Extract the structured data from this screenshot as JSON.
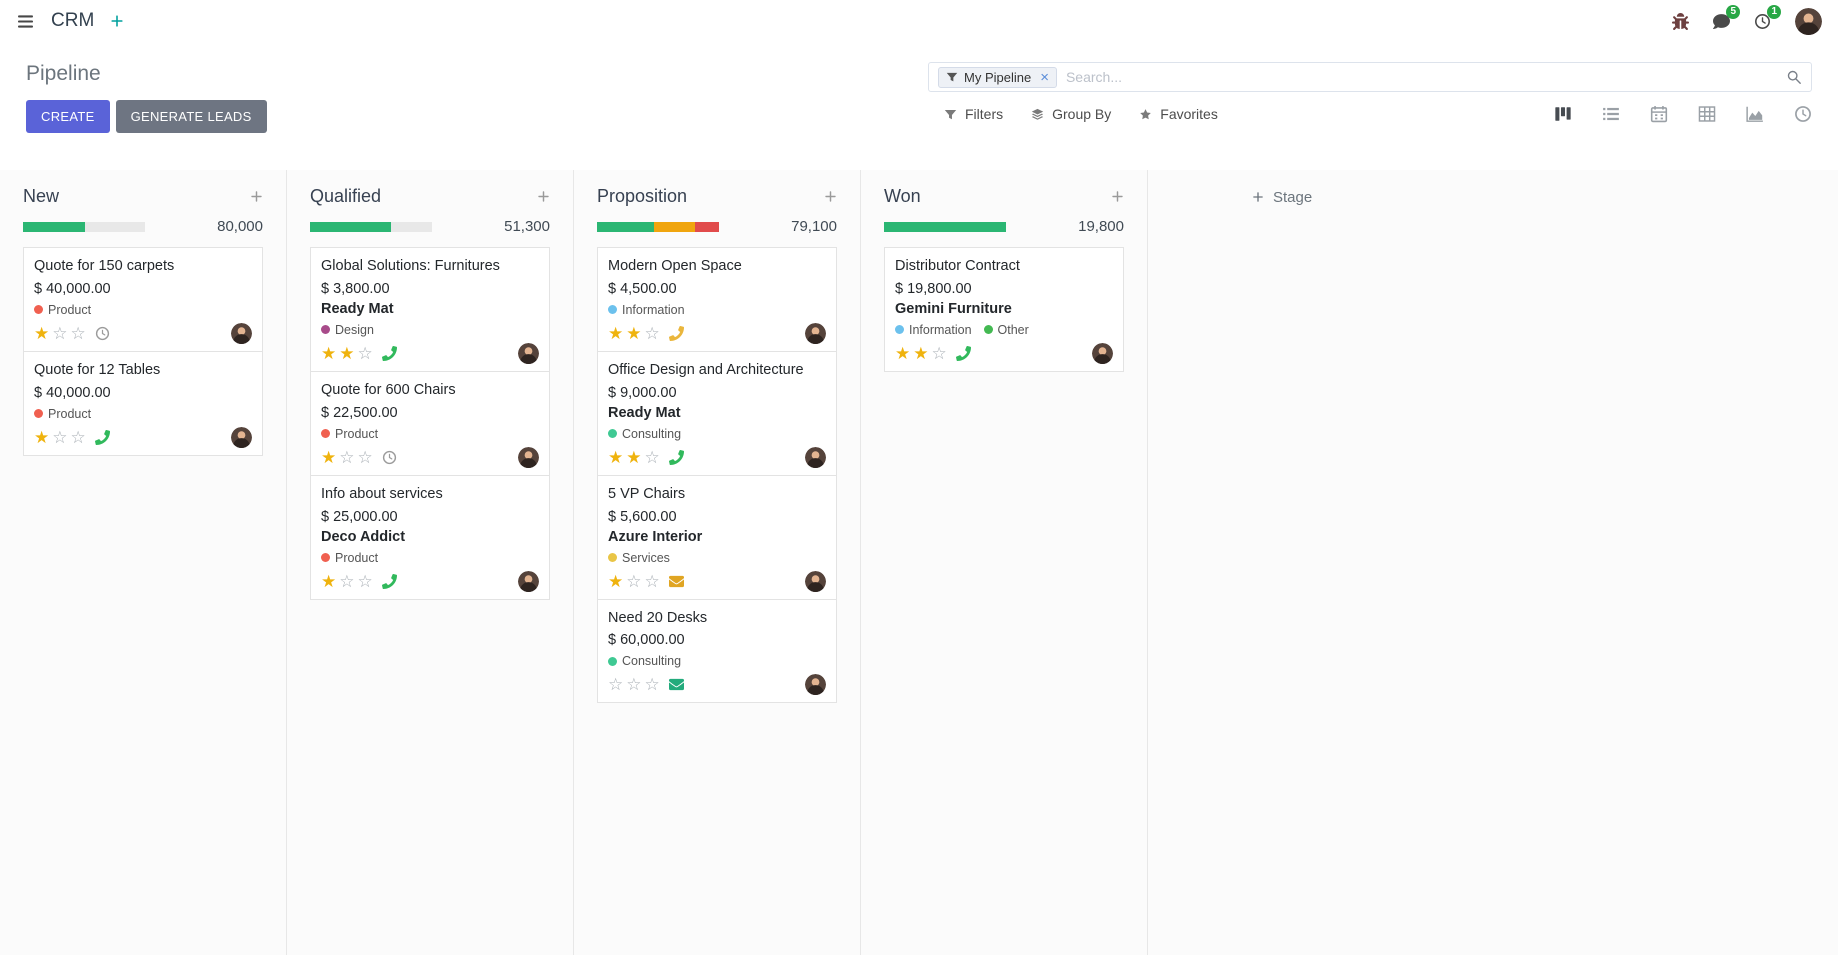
{
  "colors": {
    "primary": "#5a63d8",
    "secondary": "#6e7582",
    "gold": "#efb30e",
    "navbar_badge": "#28a745",
    "app_accent": "#00a09d"
  },
  "navbar": {
    "app_name": "CRM",
    "messages_badge": "5",
    "activities_badge": "1"
  },
  "control_panel": {
    "title": "Pipeline",
    "buttons": {
      "create": "CREATE",
      "generate_leads": "GENERATE LEADS"
    },
    "search": {
      "facet_label": "My Pipeline",
      "placeholder": "Search..."
    },
    "filter_row": {
      "filters": "Filters",
      "group_by": "Group By",
      "favorites": "Favorites"
    },
    "view_switcher": [
      {
        "name": "kanban",
        "active": true
      },
      {
        "name": "list",
        "active": false
      },
      {
        "name": "calendar",
        "active": false
      },
      {
        "name": "pivot",
        "active": false
      },
      {
        "name": "graph",
        "active": false
      },
      {
        "name": "activity",
        "active": false
      }
    ]
  },
  "icons": {
    "apps-menu-icon": "hamburger",
    "nav-plus-icon": "plus",
    "debug-icon": "bug",
    "messages-icon": "comment-bubble",
    "activities-icon": "clock",
    "user-avatar": "person-photo",
    "search-facet-icon": "funnel",
    "search-icon": "magnifier",
    "filters-icon": "funnel",
    "group-by-icon": "layers",
    "favorites-icon": "star",
    "kanban-view-icon": "kanban-board",
    "list-view-icon": "list",
    "calendar-view-icon": "calendar",
    "pivot-view-icon": "table-grid",
    "graph-view-icon": "area-chart",
    "activity-view-icon": "clock",
    "star-icon": "star",
    "activity-clock-icon": "clock",
    "activity-phone-icon": "phone",
    "activity-mail-icon": "envelope",
    "plus-icon": "plus"
  },
  "kanban": {
    "add_stage_label": "Stage",
    "columns": [
      {
        "name": "New",
        "counter": "80,000",
        "progress": [
          {
            "color": "#2bb673",
            "pct": 51
          }
        ],
        "cards": [
          {
            "title": "Quote for 150 carpets",
            "amount": "$ 40,000.00",
            "partner": "",
            "tags": [
              {
                "label": "Product",
                "color": "#f06050"
              }
            ],
            "stars": 1,
            "activity": {
              "type": "clock",
              "color": "#9b9b9b"
            }
          },
          {
            "title": "Quote for 12 Tables",
            "amount": "$ 40,000.00",
            "partner": "",
            "tags": [
              {
                "label": "Product",
                "color": "#f06050"
              }
            ],
            "stars": 1,
            "activity": {
              "type": "phone",
              "color": "#31b95c"
            }
          }
        ]
      },
      {
        "name": "Qualified",
        "counter": "51,300",
        "progress": [
          {
            "color": "#2bb673",
            "pct": 66
          }
        ],
        "cards": [
          {
            "title": "Global Solutions: Furnitures",
            "amount": "$ 3,800.00",
            "partner": "Ready Mat",
            "tags": [
              {
                "label": "Design",
                "color": "#a84b8a"
              }
            ],
            "stars": 2,
            "activity": {
              "type": "phone",
              "color": "#31b95c"
            }
          },
          {
            "title": "Quote for 600 Chairs",
            "amount": "$ 22,500.00",
            "partner": "",
            "tags": [
              {
                "label": "Product",
                "color": "#f06050"
              }
            ],
            "stars": 1,
            "activity": {
              "type": "clock",
              "color": "#9b9b9b"
            }
          },
          {
            "title": "Info about services",
            "amount": "$ 25,000.00",
            "partner": "Deco Addict",
            "tags": [
              {
                "label": "Product",
                "color": "#f06050"
              }
            ],
            "stars": 1,
            "activity": {
              "type": "phone",
              "color": "#31b95c"
            }
          }
        ]
      },
      {
        "name": "Proposition",
        "counter": "79,100",
        "progress": [
          {
            "color": "#2bb673",
            "pct": 47
          },
          {
            "color": "#f0a50e",
            "pct": 33
          },
          {
            "color": "#e14b4b",
            "pct": 20
          }
        ],
        "cards": [
          {
            "title": "Modern Open Space",
            "amount": "$ 4,500.00",
            "partner": "",
            "tags": [
              {
                "label": "Information",
                "color": "#6cc1ed"
              }
            ],
            "stars": 2,
            "activity": {
              "type": "phone",
              "color": "#eab63c"
            }
          },
          {
            "title": "Office Design and Architecture",
            "amount": "$ 9,000.00",
            "partner": "Ready Mat",
            "tags": [
              {
                "label": "Consulting",
                "color": "#3fc993"
              }
            ],
            "stars": 2,
            "activity": {
              "type": "phone",
              "color": "#31b95c"
            }
          },
          {
            "title": "5 VP Chairs",
            "amount": "$ 5,600.00",
            "partner": "Azure Interior",
            "tags": [
              {
                "label": "Services",
                "color": "#e9c546"
              }
            ],
            "stars": 1,
            "activity": {
              "type": "mail",
              "color": "#e0a523"
            }
          },
          {
            "title": "Need 20 Desks",
            "amount": "$ 60,000.00",
            "partner": "",
            "tags": [
              {
                "label": "Consulting",
                "color": "#3fc993"
              }
            ],
            "stars": 0,
            "activity": {
              "type": "mail",
              "color": "#23ab7c"
            }
          }
        ]
      },
      {
        "name": "Won",
        "counter": "19,800",
        "progress": [
          {
            "color": "#2bb673",
            "pct": 100
          }
        ],
        "cards": [
          {
            "title": "Distributor Contract",
            "amount": "$ 19,800.00",
            "partner": "Gemini Furniture",
            "tags": [
              {
                "label": "Information",
                "color": "#6cc1ed"
              },
              {
                "label": "Other",
                "color": "#43b952"
              }
            ],
            "stars": 2,
            "activity": {
              "type": "phone",
              "color": "#31b95c"
            }
          }
        ]
      }
    ]
  }
}
